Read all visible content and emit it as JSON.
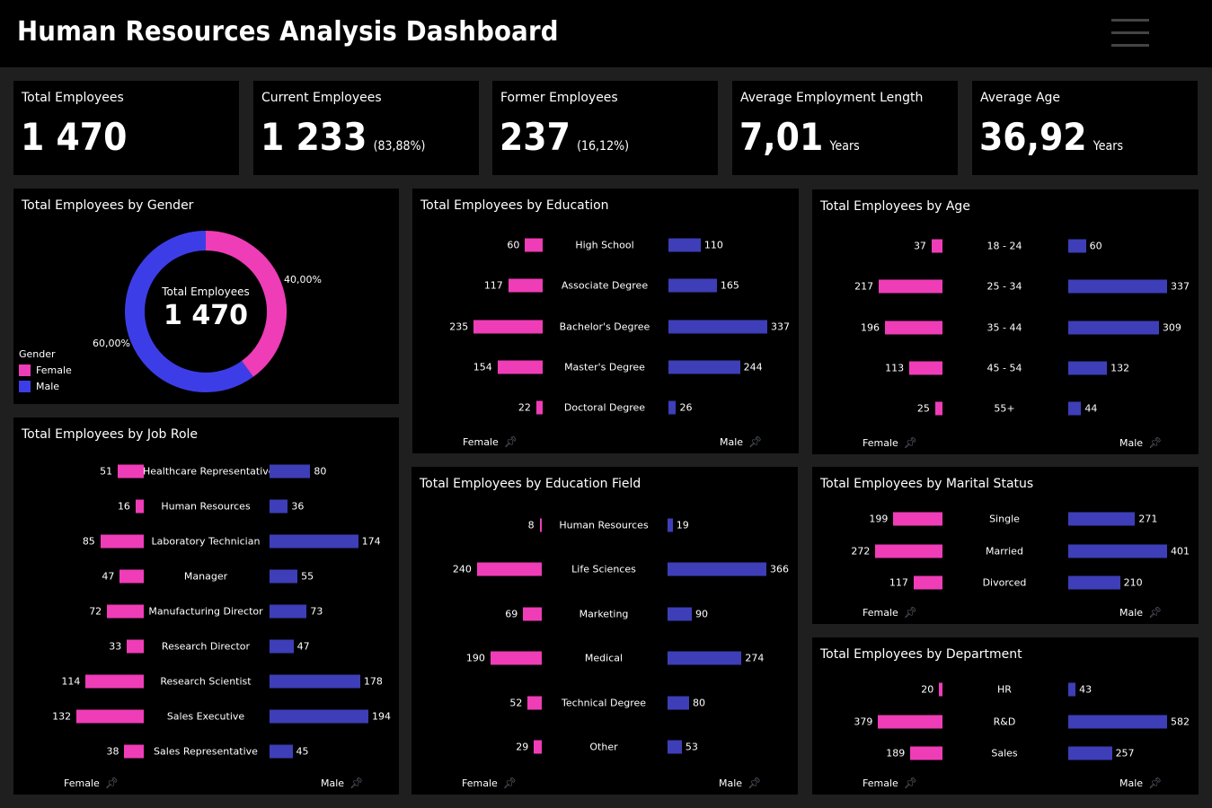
{
  "header": {
    "title": "Human Resources Analysis Dashboard",
    "menu_icon": "hamburger-icon"
  },
  "colors": {
    "female": "#ee3db6",
    "male": "#3e3eb8",
    "donut_male": "#3d3de8",
    "background": "#1f1f1f"
  },
  "kpis": [
    {
      "label": "Total Employees",
      "value": "1 470",
      "sub": ""
    },
    {
      "label": "Current Employees",
      "value": "1 233",
      "sub": "(83,88%)"
    },
    {
      "label": "Former Employees",
      "value": "237",
      "sub": "(16,12%)"
    },
    {
      "label": "Average Employment Length",
      "value": "7,01",
      "sub": "Years"
    },
    {
      "label": "Average Age",
      "value": "36,92",
      "sub": "Years"
    }
  ],
  "gender": {
    "title": "Total Employees by Gender",
    "center_label": "Total Employees",
    "center_value": "1 470",
    "legend_title": "Gender",
    "female_label": "Female",
    "male_label": "Male",
    "female_pct_label": "40,00%",
    "male_pct_label": "60,00%",
    "female_pct": 40,
    "male_pct": 60
  },
  "chart_data": [
    {
      "id": "education",
      "type": "bar",
      "title": "Total Employees by Education",
      "categories": [
        "High School",
        "Associate Degree",
        "Bachelor's Degree",
        "Master's Degree",
        "Doctoral Degree"
      ],
      "series": [
        {
          "name": "Female",
          "values": [
            60,
            117,
            235,
            154,
            22
          ]
        },
        {
          "name": "Male",
          "values": [
            110,
            165,
            337,
            244,
            26
          ]
        }
      ]
    },
    {
      "id": "age",
      "type": "bar",
      "title": "Total Employees by Age",
      "categories": [
        "18 - 24",
        "25 - 34",
        "35 - 44",
        "45 - 54",
        "55+"
      ],
      "series": [
        {
          "name": "Female",
          "values": [
            37,
            217,
            196,
            113,
            25
          ]
        },
        {
          "name": "Male",
          "values": [
            60,
            337,
            309,
            132,
            44
          ]
        }
      ]
    },
    {
      "id": "jobrole",
      "type": "bar",
      "title": "Total Employees by Job Role",
      "categories": [
        "Healthcare Representative",
        "Human Resources",
        "Laboratory Technician",
        "Manager",
        "Manufacturing Director",
        "Research Director",
        "Research Scientist",
        "Sales Executive",
        "Sales Representative"
      ],
      "series": [
        {
          "name": "Female",
          "values": [
            51,
            16,
            85,
            47,
            72,
            33,
            114,
            132,
            38
          ]
        },
        {
          "name": "Male",
          "values": [
            80,
            36,
            174,
            55,
            73,
            47,
            178,
            194,
            45
          ]
        }
      ]
    },
    {
      "id": "edufield",
      "type": "bar",
      "title": "Total Employees by Education Field",
      "categories": [
        "Human Resources",
        "Life Sciences",
        "Marketing",
        "Medical",
        "Technical Degree",
        "Other"
      ],
      "series": [
        {
          "name": "Female",
          "values": [
            8,
            240,
            69,
            190,
            52,
            29
          ]
        },
        {
          "name": "Male",
          "values": [
            19,
            366,
            90,
            274,
            80,
            53
          ]
        }
      ]
    },
    {
      "id": "marital",
      "type": "bar",
      "title": "Total Employees by Marital Status",
      "categories": [
        "Single",
        "Married",
        "Divorced"
      ],
      "series": [
        {
          "name": "Female",
          "values": [
            199,
            272,
            117
          ]
        },
        {
          "name": "Male",
          "values": [
            271,
            401,
            210
          ]
        }
      ]
    },
    {
      "id": "department",
      "type": "bar",
      "title": "Total Employees by Department",
      "categories": [
        "HR",
        "R&D",
        "Sales"
      ],
      "series": [
        {
          "name": "Female",
          "values": [
            20,
            379,
            189
          ]
        },
        {
          "name": "Male",
          "values": [
            43,
            582,
            257
          ]
        }
      ]
    }
  ]
}
